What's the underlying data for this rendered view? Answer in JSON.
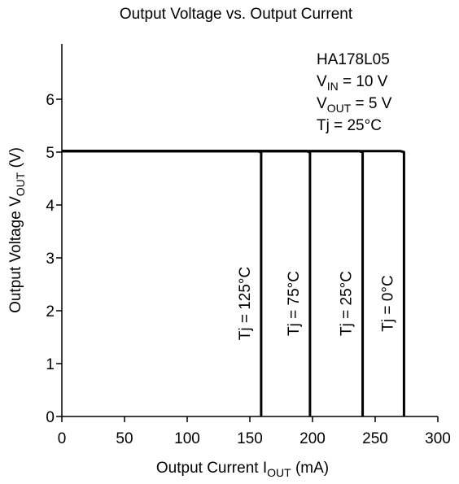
{
  "chart_data": {
    "type": "line",
    "title": "Output Voltage vs. Output Current",
    "xlabel": {
      "main": "Output Current  I",
      "sub": "OUT",
      "unit": "  (mA)"
    },
    "ylabel": {
      "main": "Output Voltage  V",
      "sub": "OUT",
      "unit": "  (V)"
    },
    "xlim": [
      0,
      300
    ],
    "ylim": [
      0,
      7
    ],
    "x_ticks": [
      0,
      50,
      100,
      150,
      200,
      250,
      300
    ],
    "y_ticks": [
      0,
      1,
      2,
      3,
      4,
      5,
      6
    ],
    "grid": false,
    "annotations": {
      "device": "HA178L05",
      "vin": {
        "main": "V",
        "sub": "IN",
        "rest": " = 10 V"
      },
      "vout": {
        "main": "V",
        "sub": "OUT",
        "rest": " = 5 V"
      },
      "tj": "Tj = 25°C"
    },
    "series": [
      {
        "label": "Tj = 125°C",
        "points": [
          [
            0,
            5.02
          ],
          [
            156,
            5.02
          ],
          [
            159,
            5.0
          ],
          [
            159,
            0
          ]
        ]
      },
      {
        "label": "Tj = 75°C",
        "points": [
          [
            0,
            5.02
          ],
          [
            195,
            5.02
          ],
          [
            198,
            5.0
          ],
          [
            198,
            0
          ]
        ]
      },
      {
        "label": "Tj = 25°C",
        "points": [
          [
            0,
            5.02
          ],
          [
            237,
            5.02
          ],
          [
            240,
            5.0
          ],
          [
            240,
            0
          ]
        ]
      },
      {
        "label": "Tj = 0°C",
        "points": [
          [
            0,
            5.02
          ],
          [
            270,
            5.02
          ],
          [
            273,
            5.0
          ],
          [
            273,
            0
          ]
        ]
      }
    ]
  }
}
